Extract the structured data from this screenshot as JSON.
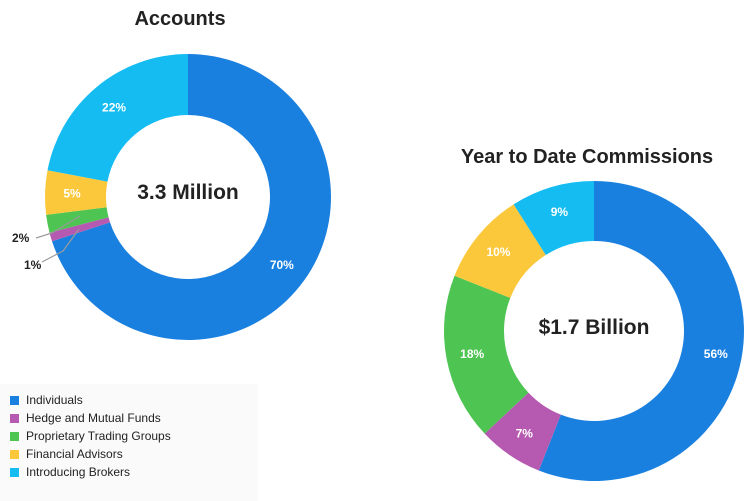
{
  "chart_data": [
    {
      "type": "pie",
      "title": "Accounts",
      "center_text": "3.3 Million",
      "categories": [
        "Individuals",
        "Hedge and Mutual Funds",
        "Proprietary Trading Groups",
        "Financial Advisors",
        "Introducing Brokers"
      ],
      "values": [
        70,
        1,
        2,
        5,
        22
      ],
      "labels": [
        "70%",
        "1%",
        "2%",
        "5%",
        "22%"
      ],
      "colors": [
        "#1a80df",
        "#b659b0",
        "#4ec452",
        "#fbc83b",
        "#14bcf1"
      ]
    },
    {
      "type": "pie",
      "title": "Year to Date Commissions",
      "center_text": "$1.7 Billion",
      "categories": [
        "Individuals",
        "Hedge and Mutual Funds",
        "Proprietary Trading Groups",
        "Financial Advisors",
        "Introducing Brokers"
      ],
      "values": [
        56,
        7,
        18,
        10,
        9
      ],
      "labels": [
        "56%",
        "7%",
        "18%",
        "10%",
        "9%"
      ],
      "colors": [
        "#1a80df",
        "#b659b0",
        "#4ec452",
        "#fbc83b",
        "#14bcf1"
      ]
    }
  ],
  "legend": {
    "items": [
      {
        "label": "Individuals",
        "color": "#1a80df"
      },
      {
        "label": "Hedge and Mutual Funds",
        "color": "#b659b0"
      },
      {
        "label": "Proprietary Trading Groups",
        "color": "#4ec452"
      },
      {
        "label": "Financial Advisors",
        "color": "#fbc83b"
      },
      {
        "label": "Introducing Brokers",
        "color": "#14bcf1"
      }
    ]
  }
}
